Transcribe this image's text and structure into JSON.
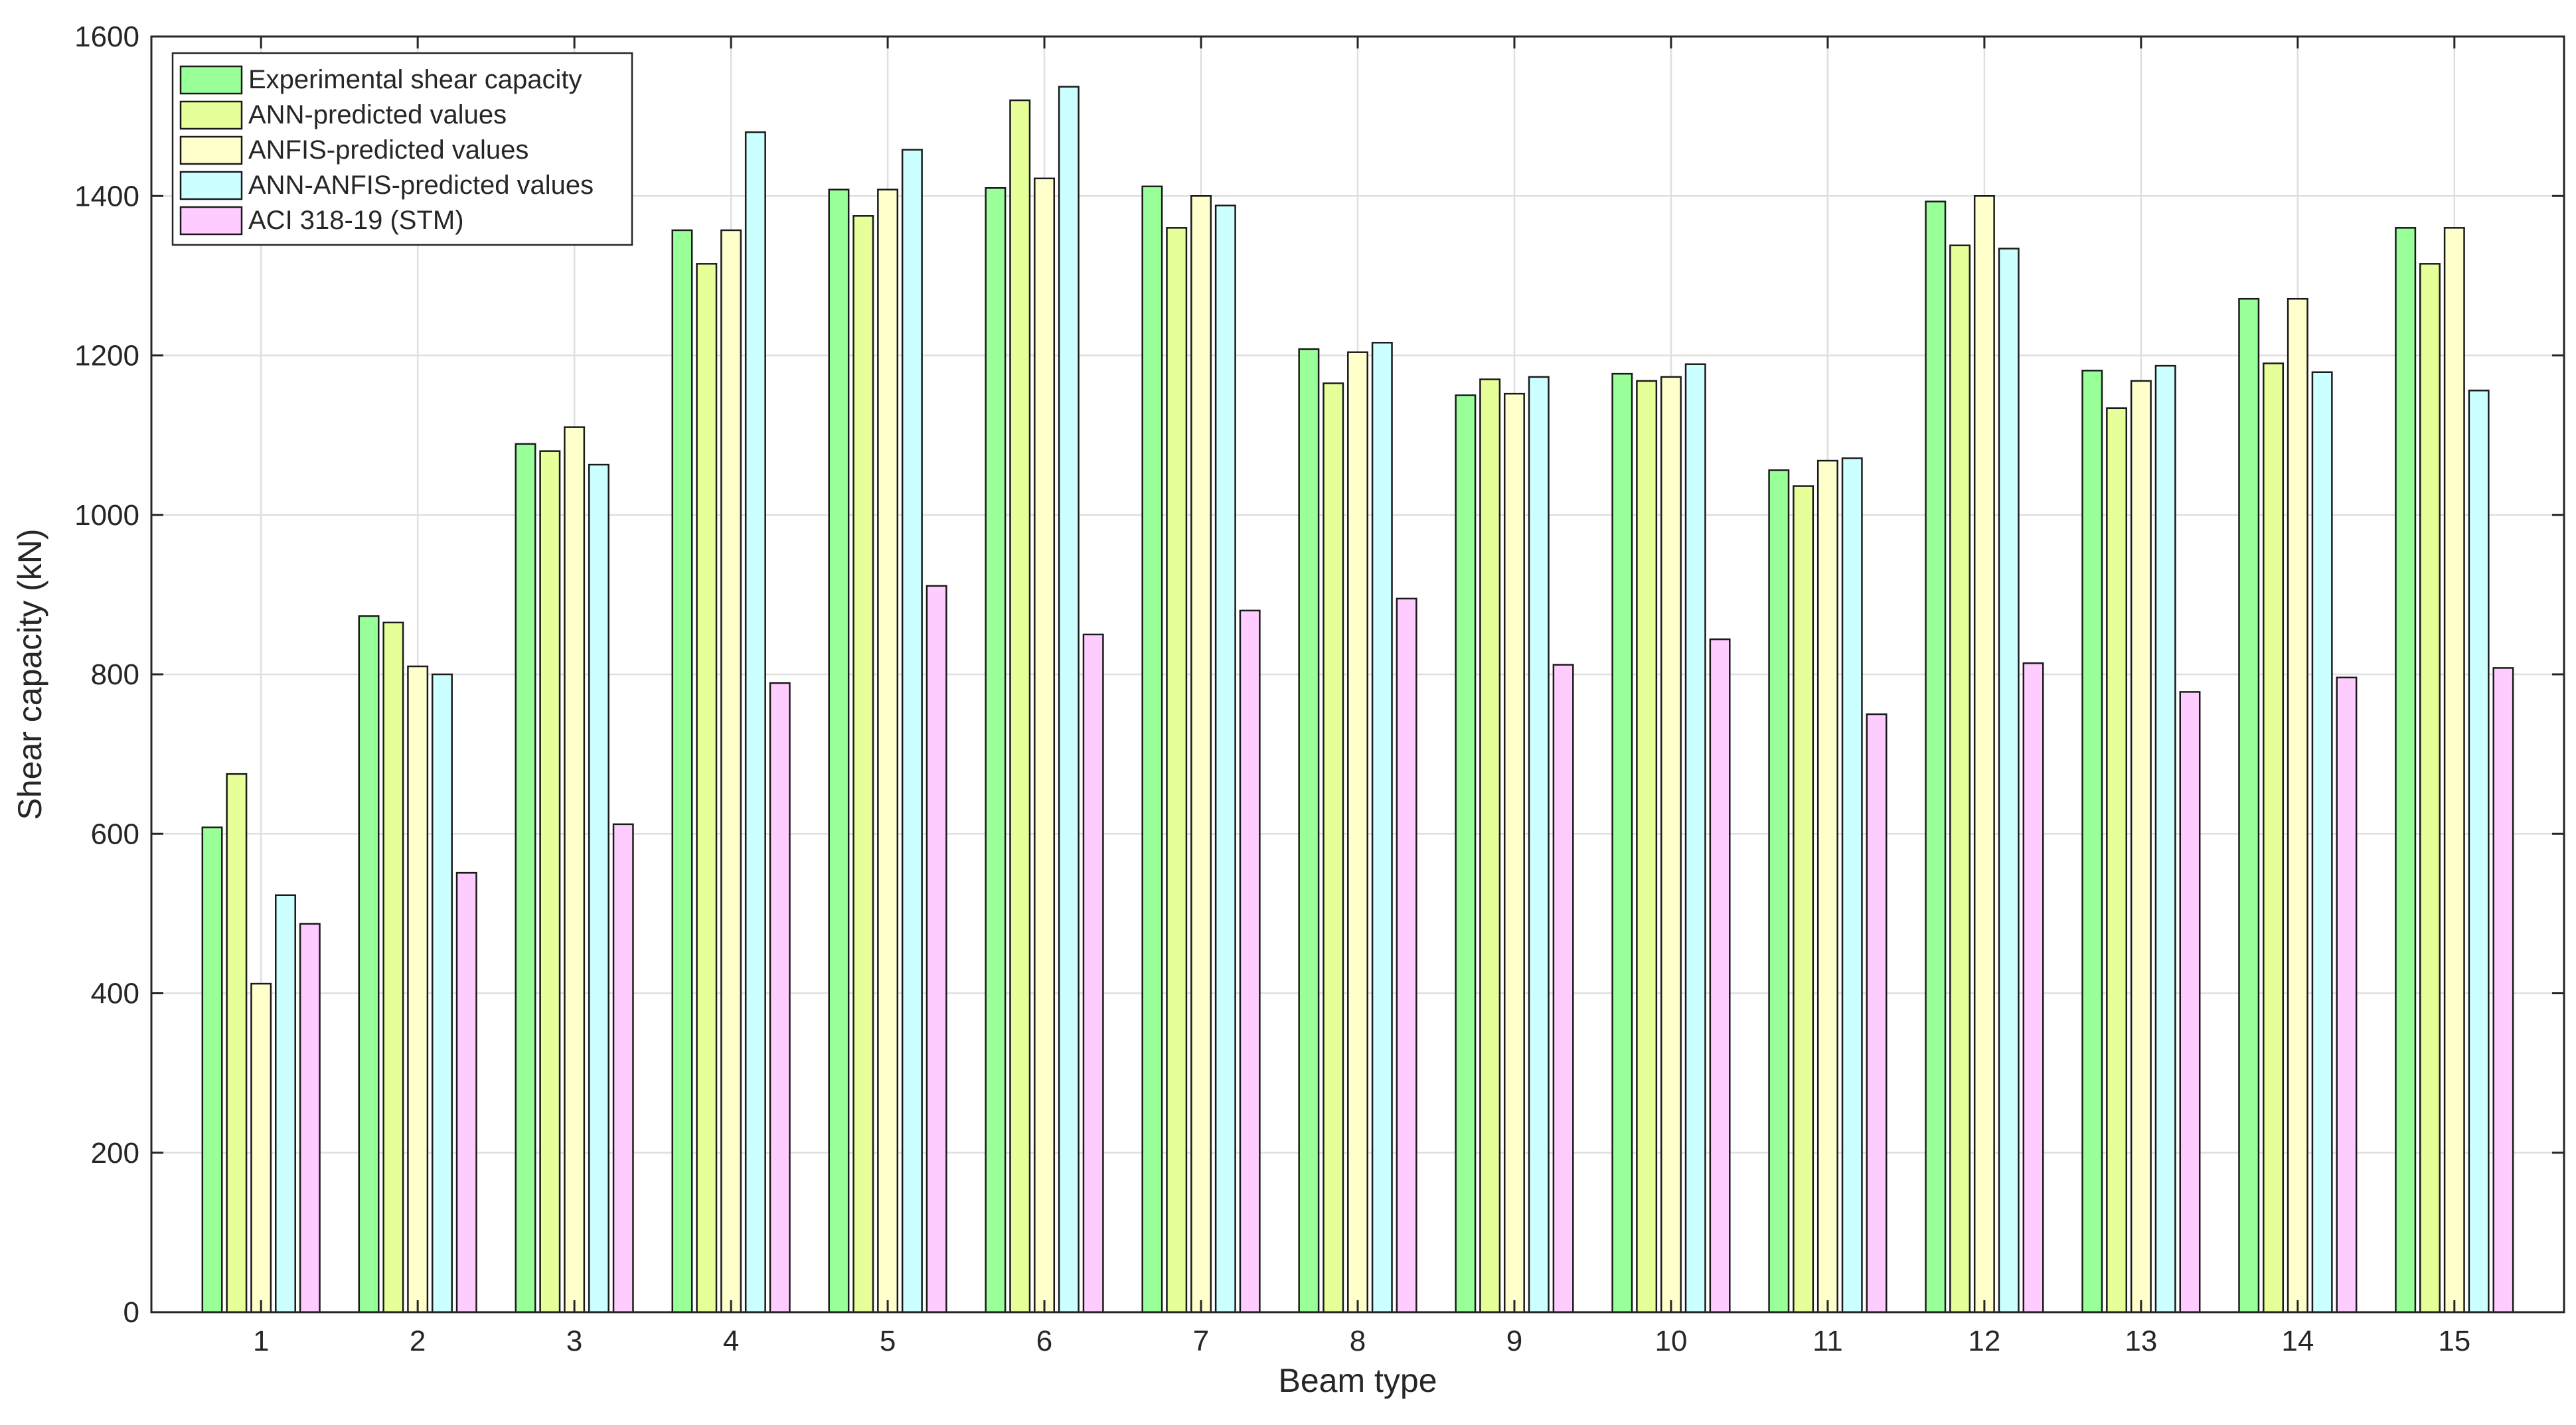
{
  "chart_data": {
    "type": "bar",
    "title": "",
    "xlabel": "Beam type",
    "ylabel": "Shear capacity (kN)",
    "ylim": [
      0,
      1600
    ],
    "yticks": [
      0,
      200,
      400,
      600,
      800,
      1000,
      1200,
      1400,
      1600
    ],
    "grid": true,
    "legend_position": "top-left",
    "categories": [
      "1",
      "2",
      "3",
      "4",
      "5",
      "6",
      "7",
      "8",
      "9",
      "10",
      "11",
      "12",
      "13",
      "14",
      "15"
    ],
    "series": [
      {
        "name": "Experimental shear capacity",
        "color": "#99ff99",
        "values": [
          608,
          873,
          1089,
          1357,
          1408,
          1410,
          1412,
          1208,
          1150,
          1177,
          1056,
          1393,
          1181,
          1271,
          1360
        ]
      },
      {
        "name": "ANN-predicted values",
        "color": "#e6ff99",
        "values": [
          675,
          865,
          1080,
          1315,
          1375,
          1520,
          1360,
          1165,
          1170,
          1168,
          1036,
          1338,
          1134,
          1190,
          1315
        ]
      },
      {
        "name": "ANFIS-predicted values",
        "color": "#ffffcc",
        "values": [
          412,
          810,
          1110,
          1357,
          1408,
          1422,
          1400,
          1204,
          1152,
          1173,
          1068,
          1400,
          1168,
          1271,
          1360
        ]
      },
      {
        "name": "ANN-ANFIS-predicted values",
        "color": "#ccffff",
        "values": [
          523,
          800,
          1063,
          1480,
          1458,
          1537,
          1388,
          1216,
          1173,
          1189,
          1071,
          1334,
          1187,
          1179,
          1156
        ]
      },
      {
        "name": "ACI 318-19 (STM)",
        "color": "#ffccff",
        "values": [
          487,
          551,
          612,
          789,
          911,
          850,
          880,
          895,
          812,
          844,
          750,
          814,
          778,
          796,
          808
        ]
      }
    ]
  }
}
